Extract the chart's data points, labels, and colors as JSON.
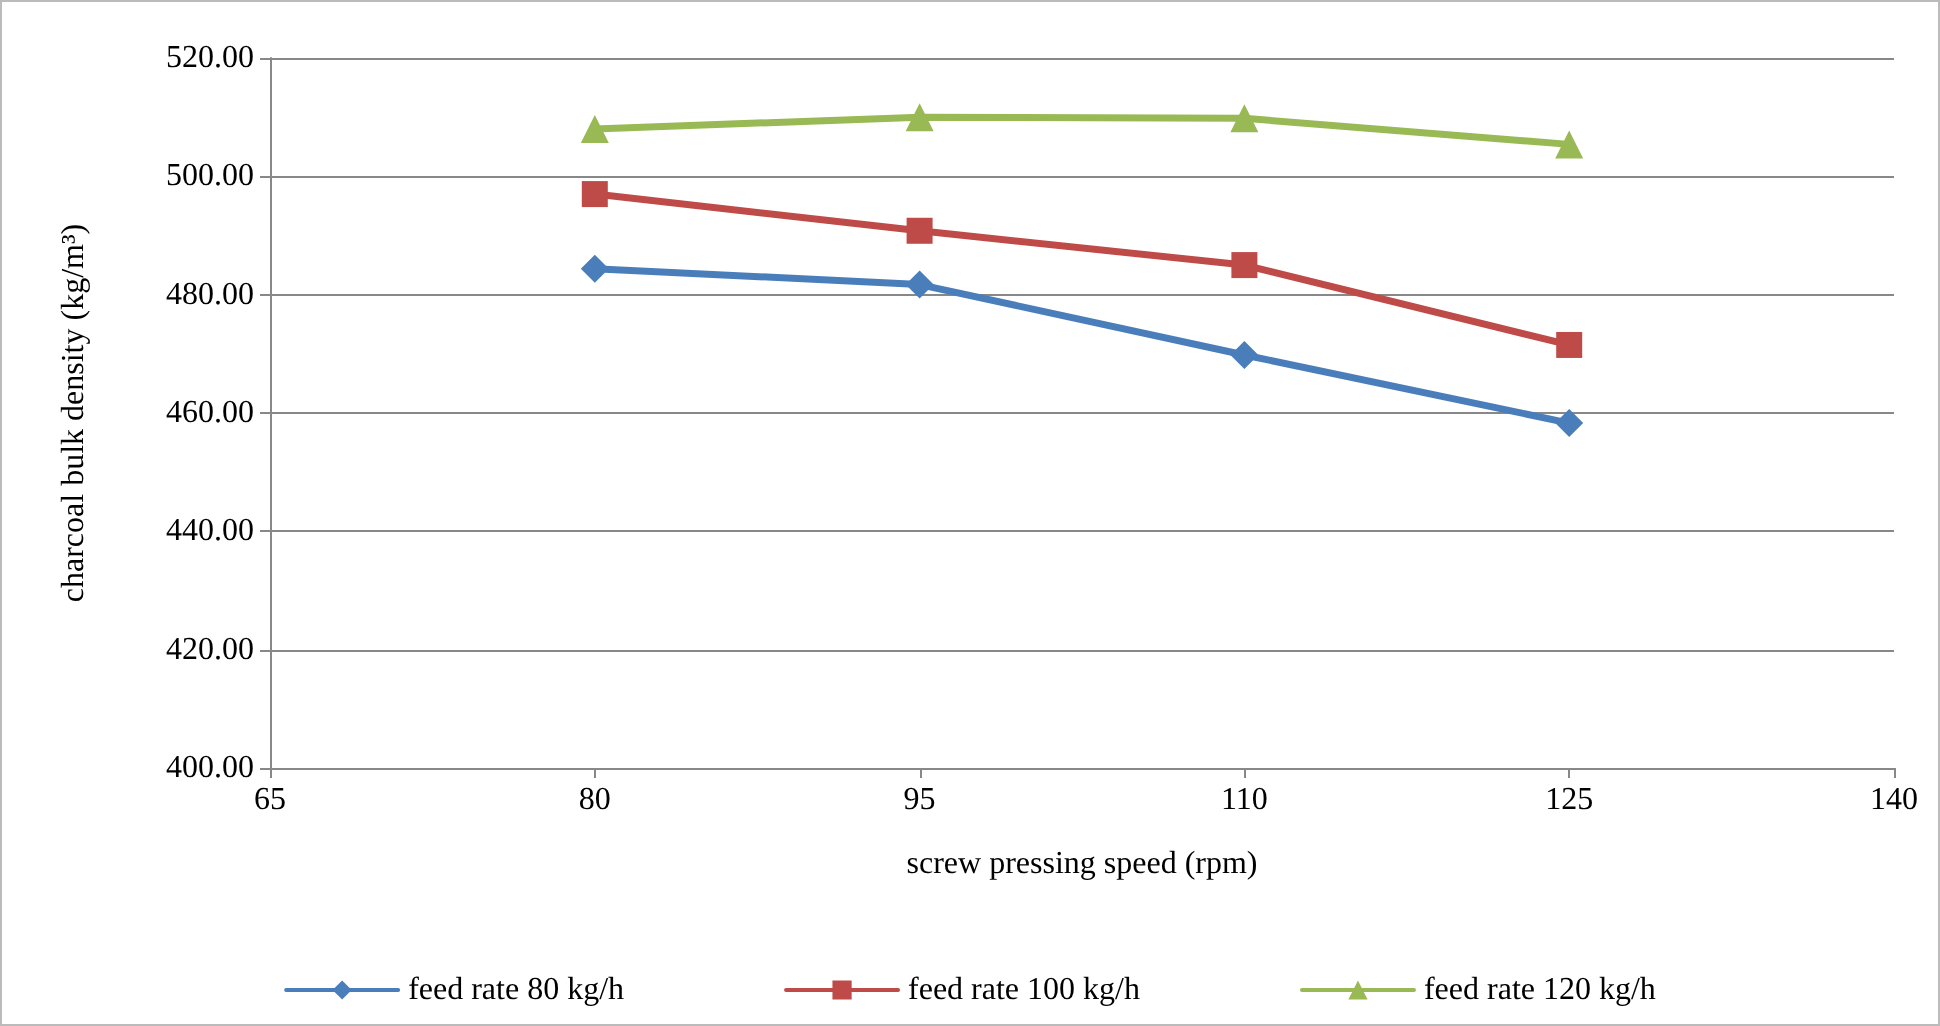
{
  "chart_data": {
    "type": "line",
    "xlabel": "screw pressing speed (rpm)",
    "ylabel": "charcoal bulk density (kg/m³)",
    "x": [
      80,
      95,
      110,
      125
    ],
    "xlim": [
      65,
      140
    ],
    "xticks": [
      65,
      80,
      95,
      110,
      125,
      140
    ],
    "ylim": [
      400,
      520
    ],
    "yticks": [
      {
        "value": 400,
        "label": "400.00"
      },
      {
        "value": 420,
        "label": "420.00"
      },
      {
        "value": 440,
        "label": "440.00"
      },
      {
        "value": 460,
        "label": "460.00"
      },
      {
        "value": 480,
        "label": "480.00"
      },
      {
        "value": 500,
        "label": "500.00"
      },
      {
        "value": 520,
        "label": "520.00"
      }
    ],
    "grid": "y",
    "legend": "bottom",
    "line_style": "solid",
    "series": [
      {
        "name": "feed rate 80 kg/h",
        "color": "#4a7ebb",
        "marker": "diamond",
        "values": [
          484.4,
          481.7,
          469.8,
          458.3
        ]
      },
      {
        "name": "feed rate 100 kg/h",
        "color": "#be4b48",
        "marker": "square",
        "values": [
          497.0,
          490.8,
          485.0,
          471.5
        ]
      },
      {
        "name": "feed rate 120 kg/h",
        "color": "#98b954",
        "marker": "triangle",
        "values": [
          508.0,
          510.0,
          509.8,
          505.4
        ]
      }
    ]
  }
}
